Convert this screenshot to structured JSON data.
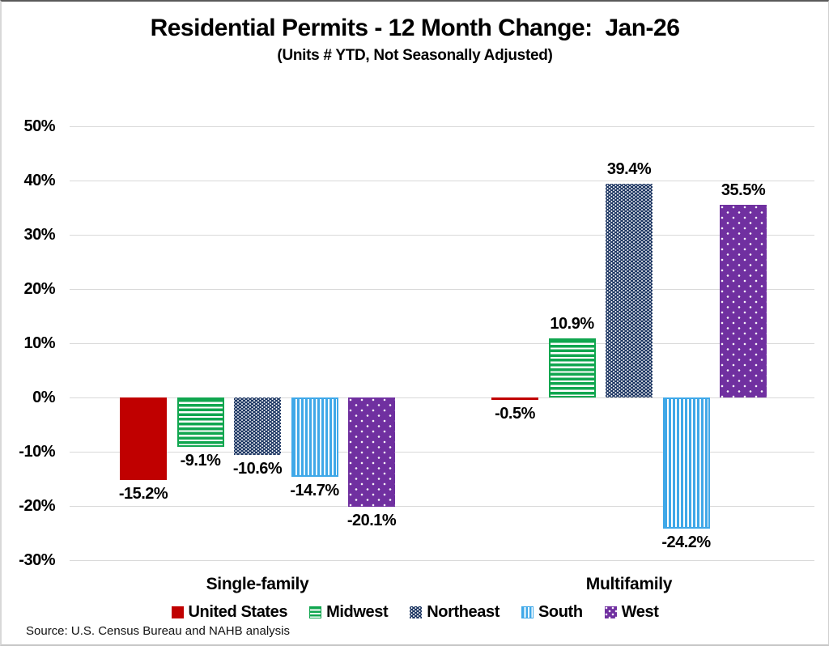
{
  "title": "Residential Permits - 12 Month Change:  Jan-26",
  "subtitle": "(Units # YTD, Not Seasonally Adjusted)",
  "source_note": "Source: U.S. Census Bureau and NAHB analysis",
  "chart_data": {
    "type": "bar",
    "categories": [
      "Single-family",
      "Multifamily"
    ],
    "series": [
      {
        "name": "United States",
        "color": "#C00000",
        "pattern": "solid",
        "values": [
          -15.2,
          -0.5
        ],
        "labels": [
          "-15.2%",
          "-0.5%"
        ]
      },
      {
        "name": "Midwest",
        "color": "#10A64F",
        "pattern": "hstripes",
        "values": [
          -9.1,
          10.9
        ],
        "labels": [
          "-9.1%",
          "10.9%"
        ]
      },
      {
        "name": "Northeast",
        "color": "#1F3864",
        "pattern": "weave",
        "values": [
          -10.6,
          39.4
        ],
        "labels": [
          "-10.6%",
          "39.4%"
        ]
      },
      {
        "name": "South",
        "color": "#3FA8E8",
        "pattern": "vstripes",
        "values": [
          -14.7,
          -24.2
        ],
        "labels": [
          "-14.7%",
          "-24.2%"
        ]
      },
      {
        "name": "West",
        "color": "#7030A0",
        "pattern": "dots",
        "values": [
          -20.1,
          35.5
        ],
        "labels": [
          "-20.1%",
          "35.5%"
        ]
      }
    ],
    "y_ticks": [
      {
        "label": "50%",
        "value": 50
      },
      {
        "label": "40%",
        "value": 40
      },
      {
        "label": "30%",
        "value": 30
      },
      {
        "label": "20%",
        "value": 20
      },
      {
        "label": "10%",
        "value": 10
      },
      {
        "label": "0%",
        "value": 0
      },
      {
        "label": "-10%",
        "value": -10
      },
      {
        "label": "-20%",
        "value": -20
      },
      {
        "label": "-30%",
        "value": -30
      }
    ],
    "ylim": [
      -30,
      50
    ],
    "grid": true,
    "legend_position": "bottom"
  }
}
